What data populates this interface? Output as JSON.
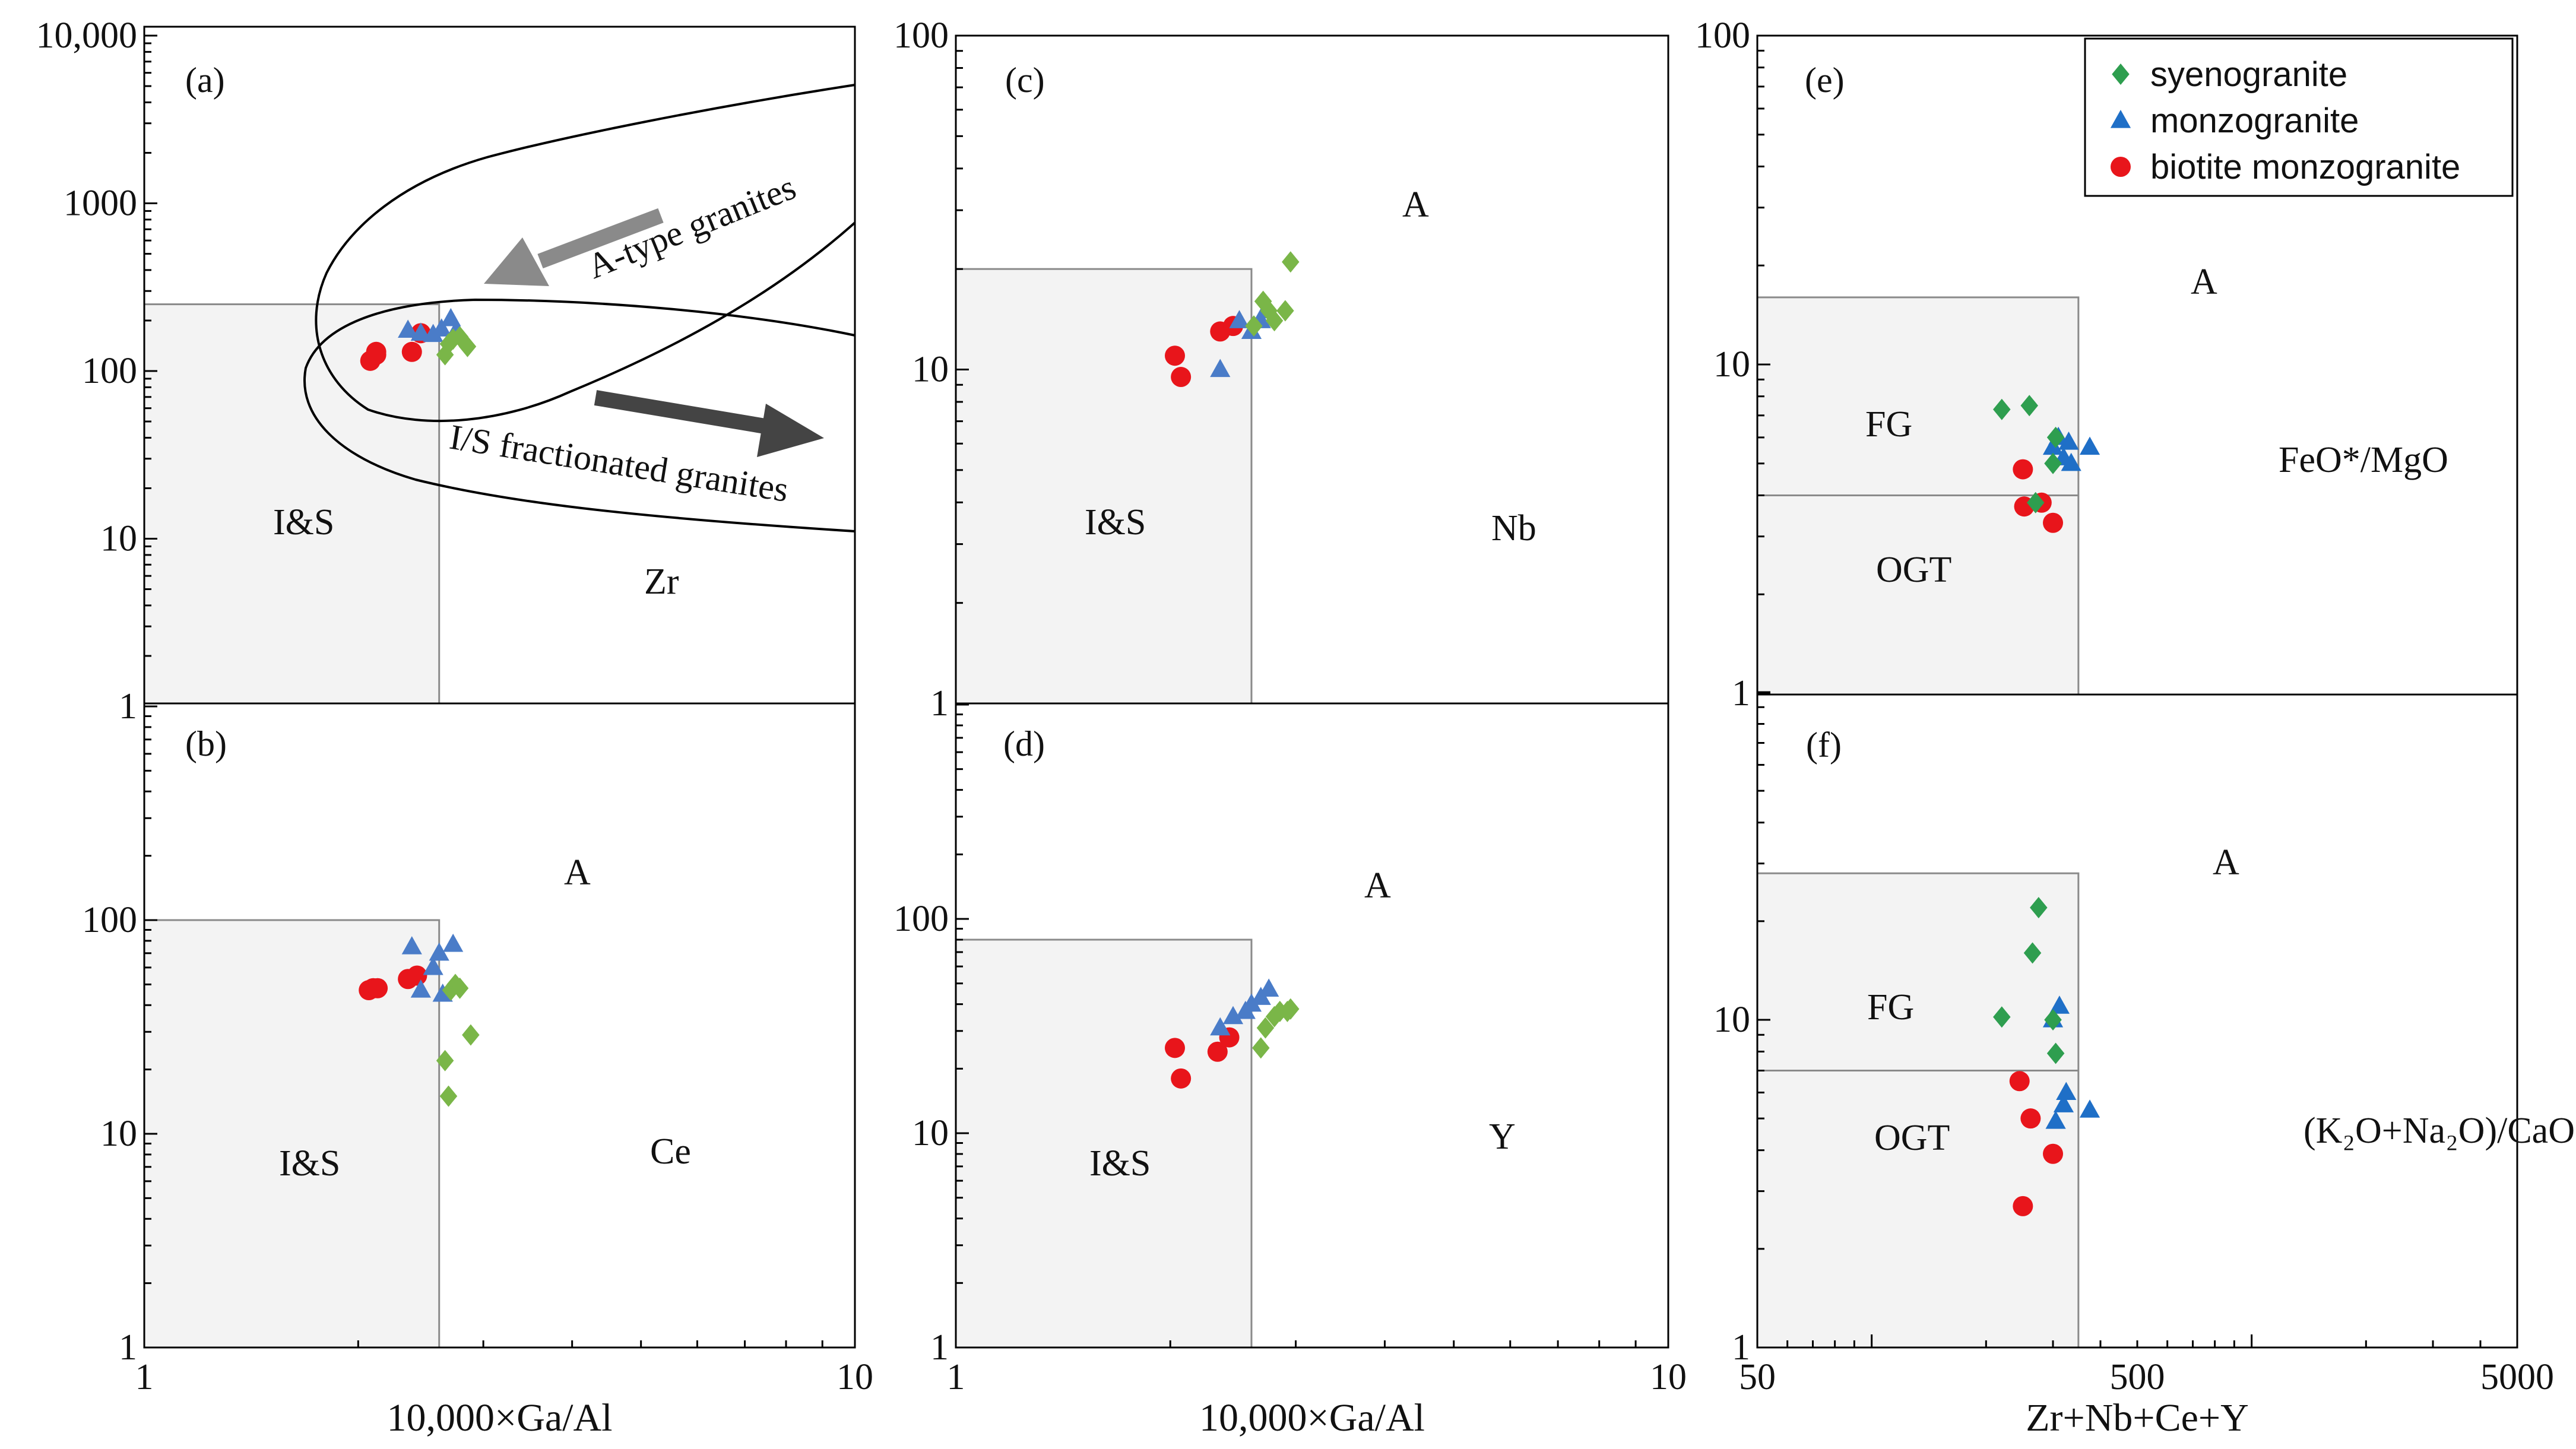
{
  "legend": [
    {
      "key": "syenogranite",
      "label": "syenogranite",
      "marker": "diamond",
      "color": "#2e9e4f"
    },
    {
      "key": "monzogranite",
      "label": "monzogranite",
      "marker": "triangle",
      "color": "#1f6fc7"
    },
    {
      "key": "biotite",
      "label": "biotite monzogranite",
      "marker": "circle",
      "color": "#e8151b"
    }
  ],
  "colors": {
    "syeno_b": "#7ab648",
    "monzo_b": "#4a7cc8"
  },
  "xaxes": {
    "left": {
      "title": "10,000×Ga/Al",
      "ticks": [
        "1",
        "10"
      ]
    },
    "middle": {
      "title": "10,000×Ga/Al",
      "ticks": [
        "1",
        "10"
      ]
    },
    "right": {
      "title": "Zr+Nb+Ce+Y",
      "ticks": [
        "50",
        "500",
        "5000"
      ]
    }
  },
  "chart_data": [
    {
      "id": "a",
      "type": "scatter",
      "title": "(a)",
      "xscale": "log",
      "yscale": "log",
      "xlim": [
        1,
        10
      ],
      "ylim": [
        1,
        10000
      ],
      "yticks": [
        "1",
        "10",
        "100",
        "1000",
        "10,000"
      ],
      "ylabel": "Zr",
      "xlabel": "10,000×Ga/Al",
      "fields": {
        "boundary_x": 2.6,
        "boundary_y": 250
      },
      "region_labels": [
        "I&S",
        "Zr"
      ],
      "annotations": [
        "A-type granites",
        "I/S fractionated granites"
      ],
      "series": [
        {
          "name": "biotite monzogranite",
          "x": [
            2.08,
            2.12,
            2.12,
            2.38,
            2.45
          ],
          "y": [
            115,
            125,
            130,
            130,
            168
          ]
        },
        {
          "name": "monzogranite",
          "x": [
            2.35,
            2.45,
            2.55,
            2.62,
            2.7,
            2.75
          ],
          "y": [
            175,
            168,
            165,
            178,
            205,
            175
          ]
        },
        {
          "name": "syenogranite",
          "x": [
            2.65,
            2.68,
            2.72,
            2.78,
            2.85
          ],
          "y": [
            125,
            145,
            155,
            160,
            140
          ]
        }
      ]
    },
    {
      "id": "b",
      "type": "scatter",
      "title": "(b)",
      "xscale": "log",
      "yscale": "log",
      "xlim": [
        1,
        10
      ],
      "ylim": [
        1,
        1000
      ],
      "yticks": [
        "1",
        "10",
        "100"
      ],
      "ylabel": "Ce",
      "xlabel": "10,000×Ga/Al",
      "fields": {
        "boundary_x": 2.6,
        "boundary_y": 100
      },
      "region_labels": [
        "A",
        "I&S",
        "Ce"
      ],
      "series": [
        {
          "name": "biotite monzogranite",
          "x": [
            2.07,
            2.1,
            2.13,
            2.35,
            2.42
          ],
          "y": [
            47,
            48,
            48,
            53,
            55
          ]
        },
        {
          "name": "monzogranite",
          "x": [
            2.38,
            2.45,
            2.55,
            2.6,
            2.63,
            2.72
          ],
          "y": [
            75,
            47,
            60,
            70,
            45,
            77
          ]
        },
        {
          "name": "syenogranite",
          "x": [
            2.65,
            2.68,
            2.7,
            2.74,
            2.78,
            2.88
          ],
          "y": [
            22,
            15,
            47,
            50,
            48,
            29
          ]
        }
      ]
    },
    {
      "id": "c",
      "type": "scatter",
      "title": "(c)",
      "xscale": "log",
      "yscale": "log",
      "xlim": [
        1,
        10
      ],
      "ylim": [
        1,
        100
      ],
      "yticks": [
        "1",
        "10",
        "100"
      ],
      "ylabel": "Nb",
      "xlabel": "10,000×Ga/Al",
      "fields": {
        "boundary_x": 2.6,
        "boundary_y": 20
      },
      "region_labels": [
        "A",
        "I&S",
        "Nb"
      ],
      "series": [
        {
          "name": "biotite monzogranite",
          "x": [
            2.03,
            2.07,
            2.35,
            2.45
          ],
          "y": [
            11,
            9.5,
            13,
            13.5
          ]
        },
        {
          "name": "monzogranite",
          "x": [
            2.35,
            2.5,
            2.6,
            2.68,
            2.72
          ],
          "y": [
            10,
            14,
            13,
            14,
            15
          ]
        },
        {
          "name": "syenogranite",
          "x": [
            2.62,
            2.7,
            2.75,
            2.8,
            2.9,
            2.95
          ],
          "y": [
            13.5,
            16,
            15,
            14,
            15,
            21
          ]
        }
      ]
    },
    {
      "id": "d",
      "type": "scatter",
      "title": "(d)",
      "xscale": "log",
      "yscale": "log",
      "xlim": [
        1,
        10
      ],
      "ylim": [
        1,
        1000
      ],
      "yticks": [
        "1",
        "10",
        "100"
      ],
      "ylabel": "Y",
      "xlabel": "10,000×Ga/Al",
      "fields": {
        "boundary_x": 2.6,
        "boundary_y": 80
      },
      "region_labels": [
        "A",
        "I&S",
        "Y"
      ],
      "series": [
        {
          "name": "biotite monzogranite",
          "x": [
            2.03,
            2.07,
            2.33,
            2.42
          ],
          "y": [
            25,
            18,
            24,
            28
          ]
        },
        {
          "name": "monzogranite",
          "x": [
            2.35,
            2.45,
            2.55,
            2.6,
            2.68,
            2.75
          ],
          "y": [
            31,
            35,
            37,
            40,
            43,
            47
          ]
        },
        {
          "name": "syenogranite",
          "x": [
            2.68,
            2.72,
            2.8,
            2.85,
            2.92,
            2.95
          ],
          "y": [
            25,
            31,
            35,
            37,
            37,
            38
          ]
        }
      ]
    },
    {
      "id": "e",
      "type": "scatter",
      "title": "(e)",
      "xscale": "log",
      "yscale": "log",
      "xlim": [
        50,
        5000
      ],
      "ylim": [
        1,
        100
      ],
      "yticks": [
        "1",
        "10",
        "100"
      ],
      "ylabel": "FeO*/MgO",
      "xlabel": "Zr+Nb+Ce+Y",
      "fields": {
        "boundary_x": 350,
        "boundary_y": 16,
        "divider_y": 4
      },
      "region_labels": [
        "A",
        "FG",
        "OGT",
        "FeO*/MgO"
      ],
      "series": [
        {
          "name": "biotite monzogranite",
          "x": [
            250,
            252,
            280,
            300
          ],
          "y": [
            4.8,
            3.7,
            3.8,
            3.3
          ]
        },
        {
          "name": "monzogranite",
          "x": [
            300,
            310,
            320,
            330,
            335,
            375
          ],
          "y": [
            5.6,
            6.0,
            5.2,
            5.8,
            5.0,
            5.6
          ]
        },
        {
          "name": "syenogranite",
          "x": [
            220,
            260,
            270,
            300,
            305
          ],
          "y": [
            7.3,
            7.5,
            3.8,
            5.0,
            6.0
          ]
        }
      ]
    },
    {
      "id": "f",
      "type": "scatter",
      "title": "(f)",
      "xscale": "log",
      "yscale": "log",
      "xlim": [
        50,
        5000
      ],
      "ylim": [
        1,
        100
      ],
      "yticks": [
        "1",
        "10"
      ],
      "ylabel": "(K₂O+Na₂O)/CaO",
      "xlabel": "Zr+Nb+Ce+Y",
      "fields": {
        "boundary_x": 350,
        "boundary_y": 28,
        "divider_y": 7
      },
      "region_labels": [
        "A",
        "FG",
        "OGT",
        "(K₂O+Na₂O)/CaO"
      ],
      "series": [
        {
          "name": "biotite monzogranite",
          "x": [
            245,
            250,
            262,
            300
          ],
          "y": [
            6.5,
            2.7,
            5.0,
            3.9
          ]
        },
        {
          "name": "monzogranite",
          "x": [
            300,
            305,
            312,
            320,
            325,
            375
          ],
          "y": [
            10,
            4.9,
            11,
            5.5,
            6.0,
            5.3
          ]
        },
        {
          "name": "syenogranite",
          "x": [
            220,
            265,
            275,
            300,
            305
          ],
          "y": [
            10.2,
            16,
            22,
            10,
            7.9
          ]
        }
      ]
    }
  ]
}
